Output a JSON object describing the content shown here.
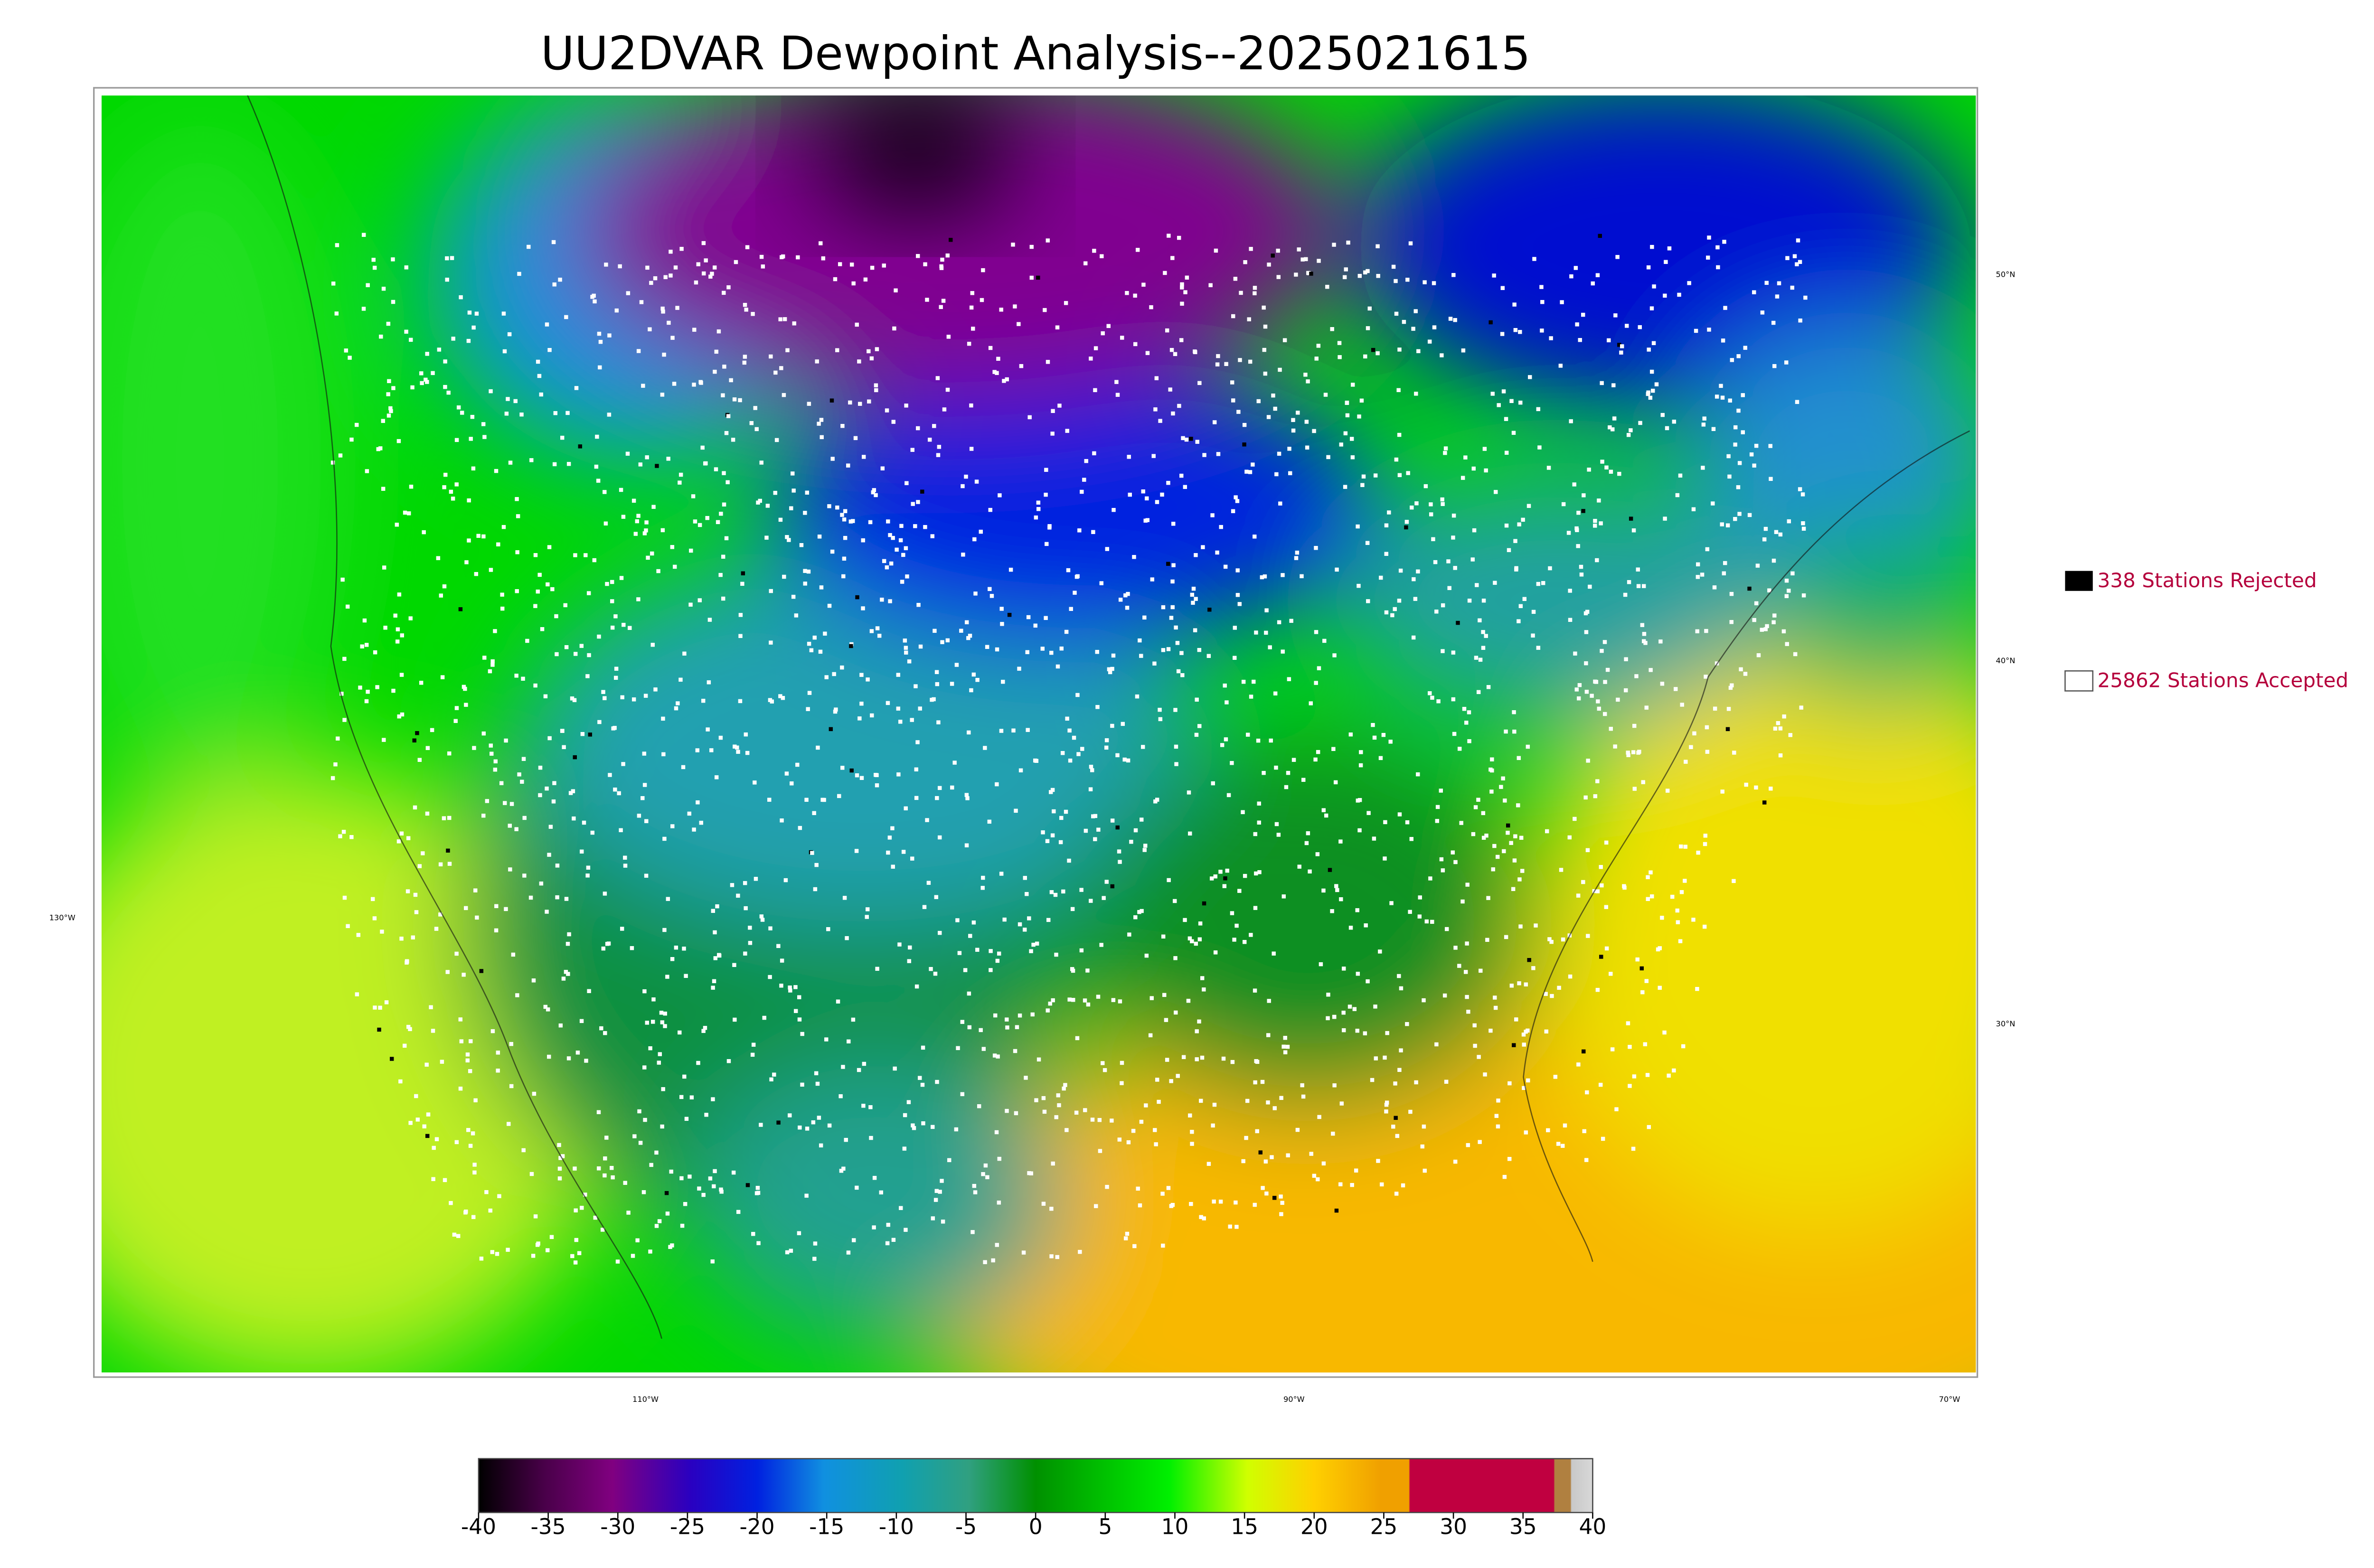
{
  "title": "UU2DVAR Dewpoint Analysis--2025021615",
  "legend": [
    "338 Stations Rejected",
    "25862 Stations Accepted"
  ],
  "lat_labels": [
    "50°N",
    "40°N",
    "30°N"
  ],
  "lon_labels": [
    "130°W",
    "110°W",
    "90°W",
    "70°W"
  ],
  "colorbar": {
    "ticks": [
      -40,
      -35,
      -30,
      -25,
      -20,
      -15,
      -10,
      -5,
      0,
      5,
      10,
      15,
      20,
      25,
      30,
      35,
      40
    ]
  }
}
